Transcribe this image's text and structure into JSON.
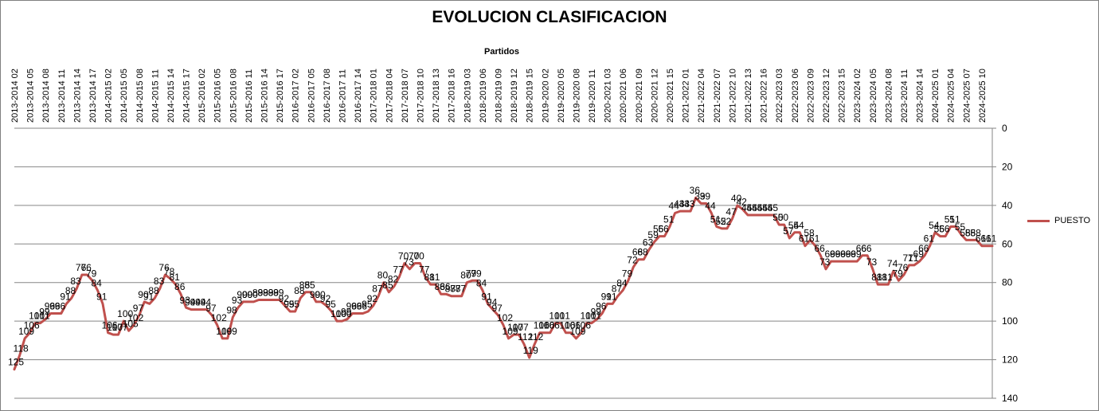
{
  "chart_data": {
    "type": "line",
    "title": "EVOLUCION CLASIFICACION",
    "xlabel": "Partidos",
    "ylabel": "",
    "x_axis_position": "top",
    "y_axis_position": "right",
    "y_inverted": true,
    "ylim": [
      0,
      140
    ],
    "yticks": [
      0,
      20,
      40,
      60,
      80,
      100,
      120,
      140
    ],
    "grid": "horizontal",
    "legend": "right",
    "series_color": "#c0504d",
    "x_tick_labels": [
      "2013-2014 02",
      "2013-2014 05",
      "2013-2014 08",
      "2013-2014 11",
      "2013-2014 14",
      "2013-2014 17",
      "2014-2015 02",
      "2014-2015 05",
      "2014-2015 08",
      "2014-2015 11",
      "2014-2015 14",
      "2014-2015 17",
      "2015-2016 02",
      "2015-2016 05",
      "2015-2016 08",
      "2015-2016 11",
      "2015-2016 14",
      "2015-2016 17",
      "2016-2017 02",
      "2016-2017 05",
      "2016-2017 08",
      "2016-2017 11",
      "2016-2017 14",
      "2017-2018 01",
      "2017-2018 04",
      "2017-2018 07",
      "2017-2018 10",
      "2017-2018 13",
      "2017-2018 16",
      "2018-2019 03",
      "2018-2019 06",
      "2018-2019 09",
      "2018-2019 12",
      "2018-2019 15",
      "2019-2020 02",
      "2019-2020 05",
      "2019-2020 08",
      "2019-2020 11",
      "2020-2021 03",
      "2020-2021 06",
      "2020-2021 09",
      "2020-2021 12",
      "2020-2021 15",
      "2021-2022 01",
      "2021-2022 04",
      "2021-2022 07",
      "2021-2022 10",
      "2021-2022 13",
      "2021-2022 16",
      "2022-2023 03",
      "2022-2023 06",
      "2022-2023 09",
      "2022-2023 12",
      "2022-2023 15",
      "2023-2024 02",
      "2023-2024 05",
      "2023-2024 08",
      "2023-2024 11",
      "2023-2024 14",
      "2024-2025 01",
      "2024-2025 04",
      "2024-2025 07",
      "2024-2025 10"
    ],
    "series": [
      {
        "name": "PUESTO",
        "values": [
          125,
          118,
          109,
          106,
          101,
          101,
          99,
          96,
          96,
          96,
          91,
          88,
          83,
          76,
          76,
          79,
          84,
          91,
          106,
          107,
          107,
          100,
          105,
          102,
          97,
          90,
          91,
          88,
          83,
          76,
          78,
          81,
          86,
          93,
          94,
          94,
          94,
          94,
          97,
          102,
          109,
          109,
          98,
          93,
          90,
          90,
          90,
          89,
          89,
          89,
          89,
          89,
          92,
          95,
          95,
          88,
          85,
          85,
          90,
          90,
          92,
          95,
          100,
          100,
          99,
          96,
          96,
          96,
          95,
          92,
          87,
          80,
          85,
          82,
          77,
          70,
          73,
          70,
          70,
          77,
          81,
          81,
          86,
          86,
          87,
          87,
          87,
          80,
          79,
          79,
          84,
          91,
          94,
          97,
          102,
          109,
          107,
          107,
          112,
          119,
          112,
          106,
          106,
          106,
          101,
          101,
          106,
          106,
          109,
          106,
          101,
          101,
          99,
          96,
          91,
          91,
          87,
          84,
          79,
          72,
          68,
          68,
          63,
          59,
          56,
          56,
          51,
          44,
          43,
          43,
          43,
          36,
          39,
          39,
          44,
          51,
          52,
          52,
          47,
          40,
          42,
          45,
          45,
          45,
          45,
          45,
          45,
          50,
          50,
          57,
          54,
          54,
          61,
          58,
          61,
          66,
          73,
          69,
          69,
          69,
          69,
          69,
          69,
          66,
          66,
          73,
          81,
          81,
          81,
          74,
          79,
          76,
          71,
          71,
          69,
          66,
          61,
          54,
          56,
          56,
          51,
          51,
          55,
          58,
          58,
          58,
          61,
          61,
          61
        ]
      }
    ]
  }
}
